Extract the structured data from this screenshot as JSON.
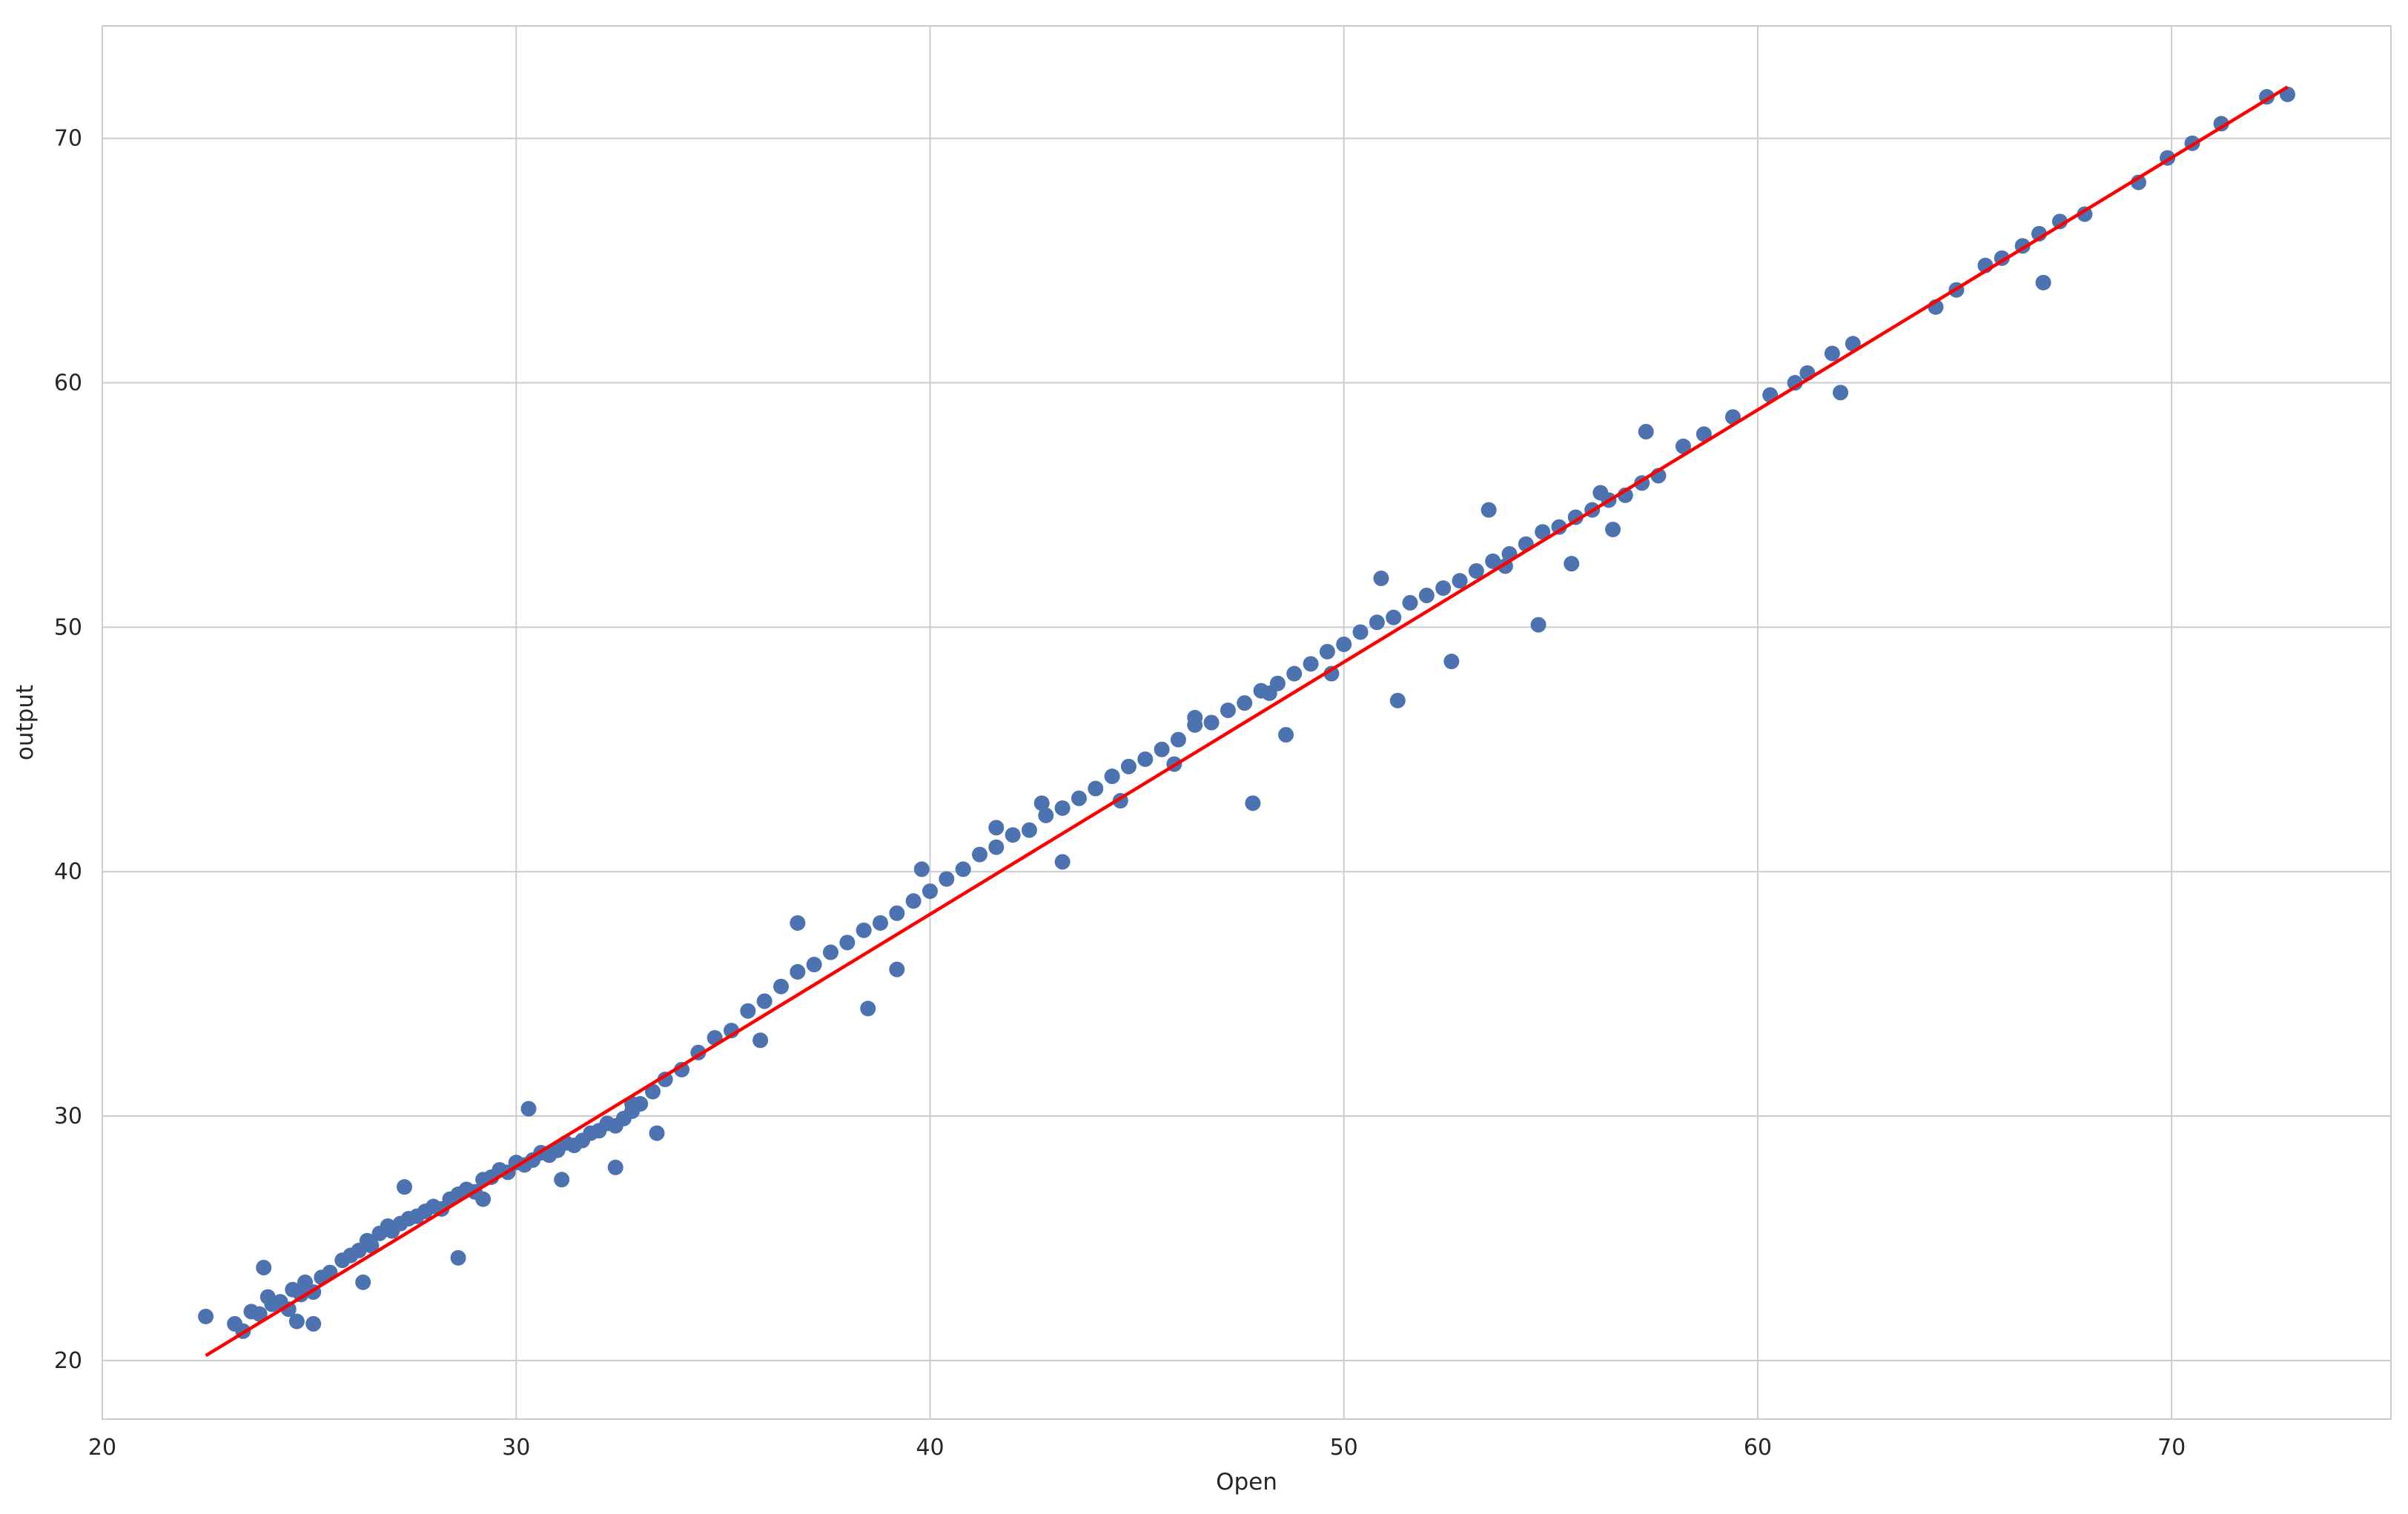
{
  "colors": {
    "background": "#ffffff",
    "grid": "#cccccc",
    "axes_frame": "#cccccc",
    "points": "#4c72b0",
    "fit_line": "#ff0000",
    "text": "#262626"
  },
  "chart_data": {
    "type": "scatter",
    "title": "",
    "xlabel": "Open",
    "ylabel": "output",
    "xlim": [
      20,
      75.3
    ],
    "ylim": [
      17.6,
      74.6
    ],
    "xticks": [
      20,
      30,
      40,
      50,
      60,
      70
    ],
    "yticks": [
      20,
      30,
      40,
      50,
      60,
      70
    ],
    "grid": true,
    "legend": "none",
    "series": [
      {
        "kind": "points",
        "color": "#4c72b0",
        "x": [
          22.5,
          23.2,
          23.4,
          23.6,
          23.8,
          24.0,
          24.1,
          24.3,
          24.5,
          24.6,
          24.8,
          24.9,
          25.1,
          25.3,
          25.5,
          25.8,
          26.0,
          26.2,
          26.4,
          26.5,
          26.7,
          26.9,
          27.0,
          27.2,
          27.4,
          27.6,
          27.8,
          28.0,
          28.2,
          28.4,
          28.6,
          28.8,
          29.0,
          29.2,
          29.4,
          29.6,
          29.8,
          30.0,
          30.2,
          30.4,
          30.6,
          30.8,
          31.0,
          31.2,
          31.4,
          31.6,
          31.8,
          32.0,
          32.2,
          32.4,
          32.6,
          32.8,
          33.0,
          33.3,
          33.6,
          34.0,
          34.4,
          34.8,
          35.2,
          35.6,
          36.0,
          36.4,
          36.8,
          37.2,
          37.6,
          38.0,
          38.4,
          38.8,
          39.2,
          39.6,
          40.0,
          40.4,
          40.8,
          41.2,
          41.6,
          42.0,
          42.4,
          42.8,
          43.2,
          43.6,
          44.0,
          44.4,
          44.8,
          45.2,
          45.6,
          46.0,
          46.4,
          46.8,
          47.2,
          47.6,
          48.0,
          48.4,
          48.8,
          49.2,
          49.6,
          50.0,
          50.4,
          50.8,
          51.2,
          51.6,
          52.0,
          52.4,
          52.8,
          53.2,
          53.6,
          54.0,
          54.4,
          54.8,
          55.2,
          55.6,
          56.0,
          56.4,
          56.8,
          57.2,
          57.6,
          58.2,
          58.7,
          59.4,
          60.3,
          60.9,
          61.2,
          61.8,
          62.3,
          64.3,
          64.8,
          65.5,
          65.9,
          66.4,
          66.8,
          67.3,
          67.9,
          69.2,
          69.9,
          70.5,
          71.2,
          72.3,
          72.8,
          23.9,
          24.7,
          26.3,
          27.3,
          28.6,
          30.3,
          31.1,
          32.4,
          33.4,
          36.8,
          38.5,
          39.2,
          41.6,
          43.2,
          44.6,
          46.4,
          47.8,
          48.6,
          49.7,
          51.3,
          52.6,
          53.5,
          54.7,
          55.5,
          56.5,
          57.3,
          25.1,
          29.2,
          32.8,
          35.9,
          39.8,
          42.7,
          45.9,
          48.2,
          50.9,
          53.9,
          56.2,
          62.0,
          66.9
        ],
        "y": [
          21.8,
          21.5,
          21.2,
          22.0,
          21.9,
          22.6,
          22.3,
          22.4,
          22.1,
          22.9,
          22.7,
          23.2,
          22.8,
          23.4,
          23.6,
          24.1,
          24.3,
          24.5,
          24.9,
          24.7,
          25.2,
          25.5,
          25.3,
          25.6,
          25.8,
          25.9,
          26.1,
          26.3,
          26.2,
          26.6,
          26.8,
          27.0,
          26.9,
          27.4,
          27.5,
          27.8,
          27.7,
          28.1,
          28.0,
          28.2,
          28.5,
          28.4,
          28.6,
          28.9,
          28.8,
          29.0,
          29.3,
          29.4,
          29.7,
          29.6,
          29.9,
          30.2,
          30.5,
          31.0,
          31.5,
          31.9,
          32.6,
          33.2,
          33.5,
          34.3,
          34.7,
          35.3,
          35.9,
          36.2,
          36.7,
          37.1,
          37.6,
          37.9,
          38.3,
          38.8,
          39.2,
          39.7,
          40.1,
          40.7,
          41.0,
          41.5,
          41.7,
          42.3,
          42.6,
          43.0,
          43.4,
          43.9,
          44.3,
          44.6,
          45.0,
          45.4,
          46.0,
          46.1,
          46.6,
          46.9,
          47.4,
          47.7,
          48.1,
          48.5,
          49.0,
          49.3,
          49.8,
          50.2,
          50.4,
          51.0,
          51.3,
          51.6,
          51.9,
          52.3,
          52.7,
          53.0,
          53.4,
          53.9,
          54.1,
          54.5,
          54.8,
          55.2,
          55.4,
          55.9,
          56.2,
          57.4,
          57.9,
          58.6,
          59.5,
          60.0,
          60.4,
          61.2,
          61.6,
          63.1,
          63.8,
          64.8,
          65.1,
          65.6,
          66.1,
          66.6,
          66.9,
          68.2,
          69.2,
          69.8,
          70.6,
          71.7,
          71.8,
          23.8,
          21.6,
          23.2,
          27.1,
          24.2,
          30.3,
          27.4,
          27.9,
          29.3,
          37.9,
          34.4,
          36.0,
          41.8,
          40.4,
          42.9,
          46.3,
          42.8,
          45.6,
          48.1,
          47.0,
          48.6,
          54.8,
          50.1,
          52.6,
          54.0,
          58.0,
          21.5,
          26.6,
          30.5,
          33.1,
          40.1,
          42.8,
          44.4,
          47.3,
          52.0,
          52.5,
          55.5,
          59.6,
          64.1
        ]
      },
      {
        "kind": "line",
        "color": "#ff0000",
        "x": [
          22.5,
          72.8
        ],
        "y": [
          20.2,
          72.1
        ]
      }
    ]
  }
}
